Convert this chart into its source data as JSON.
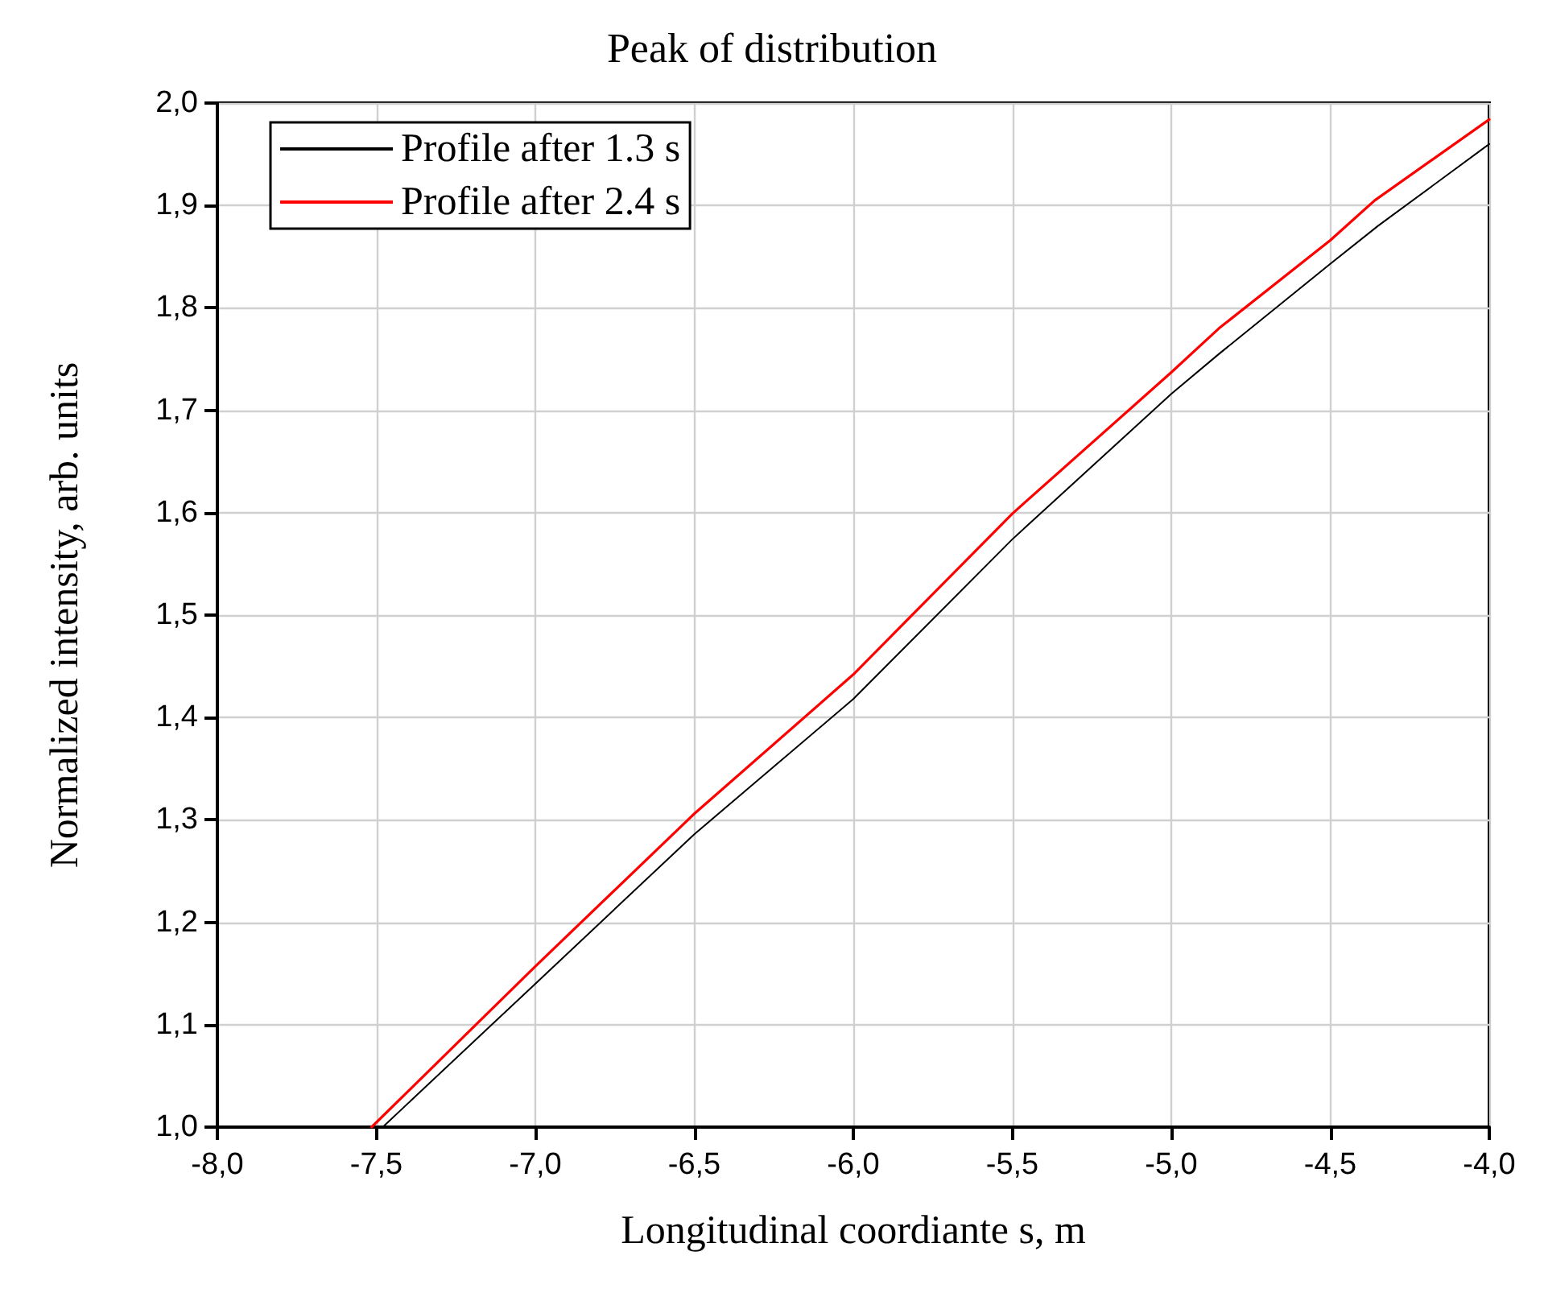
{
  "chart_data": {
    "type": "line",
    "title": "Peak of distribution",
    "xlabel": "Longitudinal coordiante s, m",
    "ylabel": "Normalized intensity, arb. units",
    "series": [
      {
        "name": "Profile after 1.3 s",
        "color": "#000000",
        "x": [
          -7.48,
          -7.0,
          -6.5,
          -6.0,
          -5.5,
          -5.0,
          -4.85,
          -4.5,
          -4.35,
          -4.0
        ],
        "values": [
          1.0,
          1.14,
          1.286,
          1.418,
          1.574,
          1.716,
          1.755,
          1.843,
          1.88,
          1.96
        ]
      },
      {
        "name": "Profile after 2.4 s",
        "color": "#ff0000",
        "x": [
          -7.515,
          -7.0,
          -6.5,
          -6.0,
          -5.5,
          -5.0,
          -4.85,
          -4.5,
          -4.36,
          -4.0
        ],
        "values": [
          1.0,
          1.157,
          1.306,
          1.442,
          1.599,
          1.737,
          1.78,
          1.866,
          1.905,
          1.984
        ]
      }
    ],
    "xlim": [
      -8,
      -4
    ],
    "xticks": [
      {
        "value": -8,
        "label": "-8,0"
      },
      {
        "value": -7.5,
        "label": "-7,5"
      },
      {
        "value": -7,
        "label": "-7,0"
      },
      {
        "value": -6.5,
        "label": "-6,5"
      },
      {
        "value": -6,
        "label": "-6,0"
      },
      {
        "value": -5.5,
        "label": "-5,5"
      },
      {
        "value": -5,
        "label": "-5,0"
      },
      {
        "value": -4.5,
        "label": "-4,5"
      },
      {
        "value": -4,
        "label": "-4,0"
      }
    ],
    "ylim": [
      1,
      2
    ],
    "yticks": [
      {
        "value": 1,
        "label": "1,0"
      },
      {
        "value": 1.1,
        "label": "1,1"
      },
      {
        "value": 1.2,
        "label": "1,2"
      },
      {
        "value": 1.3,
        "label": "1,3"
      },
      {
        "value": 1.4,
        "label": "1,4"
      },
      {
        "value": 1.5,
        "label": "1,5"
      },
      {
        "value": 1.6,
        "label": "1,6"
      },
      {
        "value": 1.7,
        "label": "1,7"
      },
      {
        "value": 1.8,
        "label": "1,8"
      },
      {
        "value": 1.9,
        "label": "1,9"
      },
      {
        "value": 2,
        "label": "2,0"
      }
    ],
    "grid": true,
    "legend": "top left",
    "marker": "none",
    "line_style": "solid"
  }
}
